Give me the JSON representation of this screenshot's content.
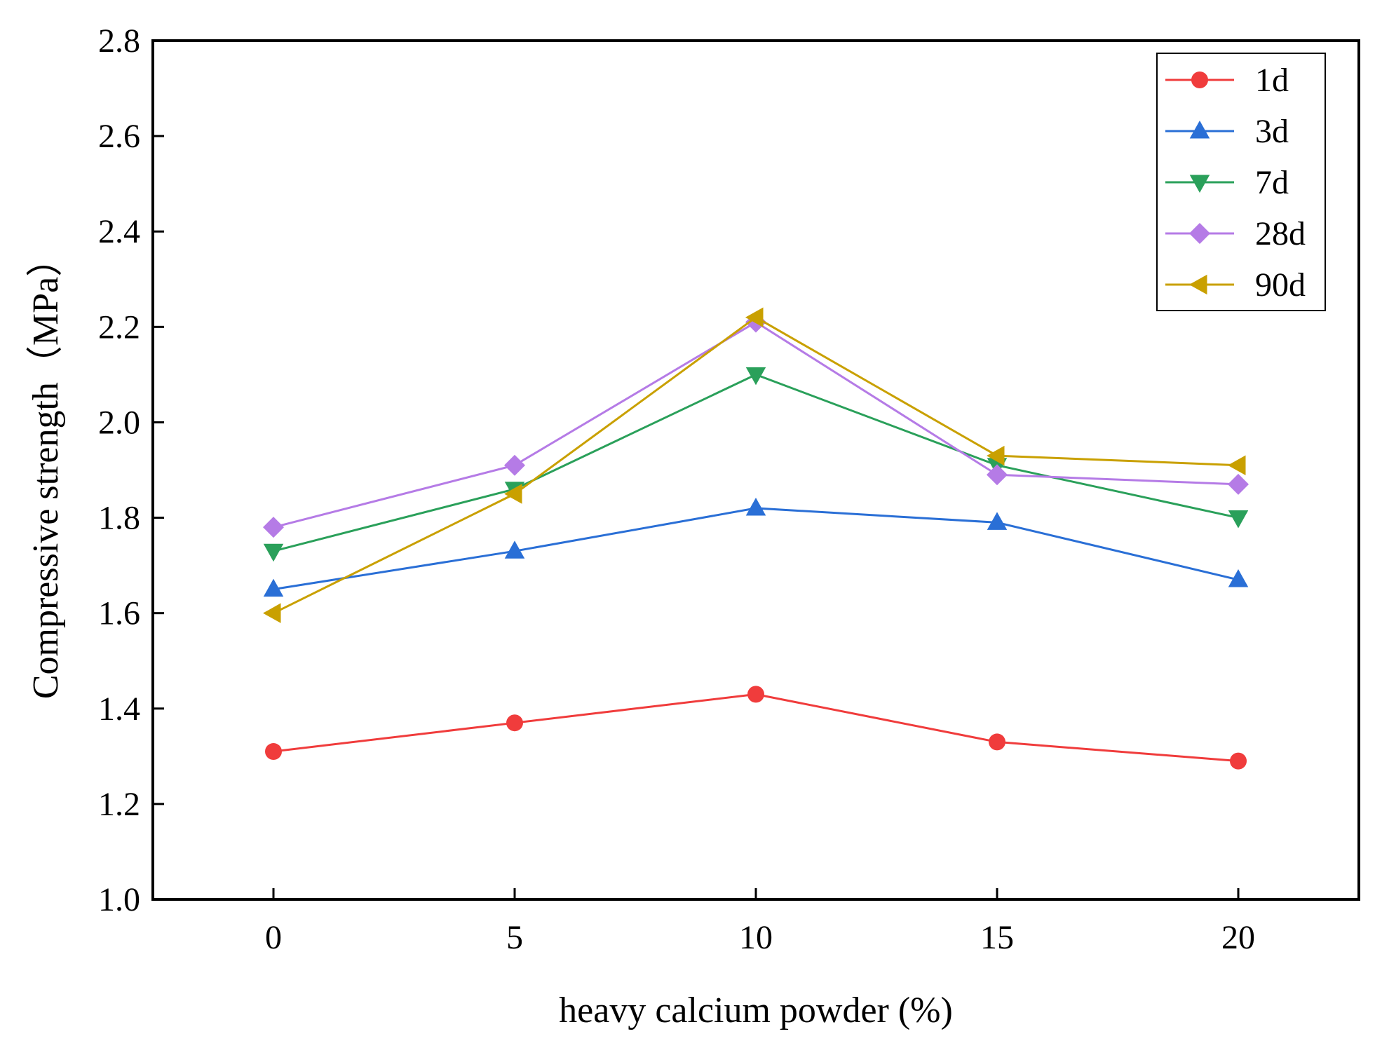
{
  "chart_data": {
    "type": "line",
    "title": "",
    "xlabel": "heavy calcium powder (%)",
    "ylabel": "Compressive strength（MPa）",
    "x": [
      0,
      5,
      10,
      15,
      20
    ],
    "x_ticks": [
      "0",
      "5",
      "10",
      "15",
      "20"
    ],
    "xlim": [
      -2.5,
      22.5
    ],
    "y_ticks": [
      "1.0",
      "1.2",
      "1.4",
      "1.6",
      "1.8",
      "2.0",
      "2.2",
      "2.4",
      "2.6",
      "2.8"
    ],
    "ylim": [
      1.0,
      2.8
    ],
    "grid": false,
    "legend_position": "top-right",
    "series": [
      {
        "name": "1d",
        "color": "#f03c3c",
        "marker": "circle",
        "values": [
          1.31,
          1.37,
          1.43,
          1.33,
          1.29
        ]
      },
      {
        "name": "3d",
        "color": "#2a6fd6",
        "marker": "triangle-up",
        "values": [
          1.65,
          1.73,
          1.82,
          1.79,
          1.67
        ]
      },
      {
        "name": "7d",
        "color": "#2aa05a",
        "marker": "triangle-down",
        "values": [
          1.73,
          1.86,
          2.1,
          1.91,
          1.8
        ]
      },
      {
        "name": "28d",
        "color": "#b57be6",
        "marker": "diamond",
        "values": [
          1.78,
          1.91,
          2.21,
          1.89,
          1.87
        ]
      },
      {
        "name": "90d",
        "color": "#c9a000",
        "marker": "triangle-left",
        "values": [
          1.6,
          1.85,
          2.22,
          1.93,
          1.91
        ]
      }
    ]
  }
}
